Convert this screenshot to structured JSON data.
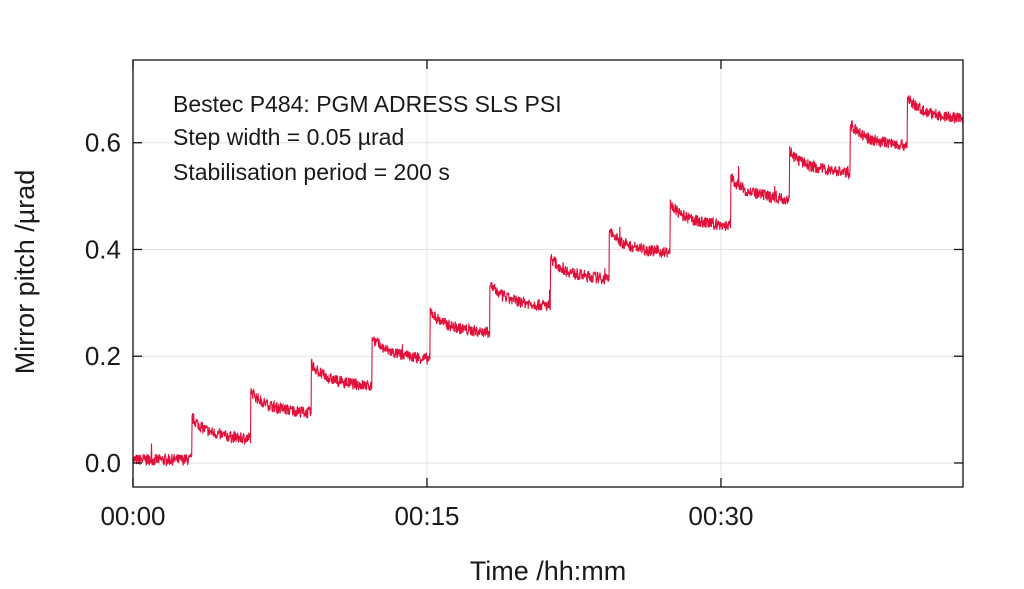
{
  "chart_data": {
    "type": "line",
    "title": "",
    "annotations": [
      "Bestec P484: PGM ADRESS SLS PSI",
      "Step width = 0.05 µrad",
      "Stabilisation period = 200 s"
    ],
    "xlabel": "Time /hh:mm",
    "ylabel": "Mirror pitch /µrad",
    "xlim_min": [
      0,
      42.35
    ],
    "ylim": [
      -0.045,
      0.755
    ],
    "x_ticks": [
      {
        "value": 0,
        "label": "00:00"
      },
      {
        "value": 15,
        "label": "00:15"
      },
      {
        "value": 30,
        "label": "00:30"
      }
    ],
    "y_ticks": [
      {
        "value": 0.0,
        "label": "0.0"
      },
      {
        "value": 0.2,
        "label": "0.2"
      },
      {
        "value": 0.4,
        "label": "0.4"
      },
      {
        "value": 0.6,
        "label": "0.6"
      }
    ],
    "grid": true,
    "series": [
      {
        "name": "Mirror pitch",
        "color": "#e0103a",
        "steps": [
          {
            "start_min": 0.0,
            "level": 0.0
          },
          {
            "start_min": 3.0,
            "level": 0.05
          },
          {
            "start_min": 6.0,
            "level": 0.1
          },
          {
            "start_min": 9.1,
            "level": 0.15
          },
          {
            "start_min": 12.2,
            "level": 0.2
          },
          {
            "start_min": 15.15,
            "level": 0.25
          },
          {
            "start_min": 18.2,
            "level": 0.3
          },
          {
            "start_min": 21.3,
            "level": 0.35
          },
          {
            "start_min": 24.3,
            "level": 0.4
          },
          {
            "start_min": 27.4,
            "level": 0.45
          },
          {
            "start_min": 30.5,
            "level": 0.5
          },
          {
            "start_min": 33.5,
            "level": 0.55
          },
          {
            "start_min": 36.6,
            "level": 0.6
          },
          {
            "start_min": 39.5,
            "level": 0.65
          }
        ]
      }
    ]
  }
}
